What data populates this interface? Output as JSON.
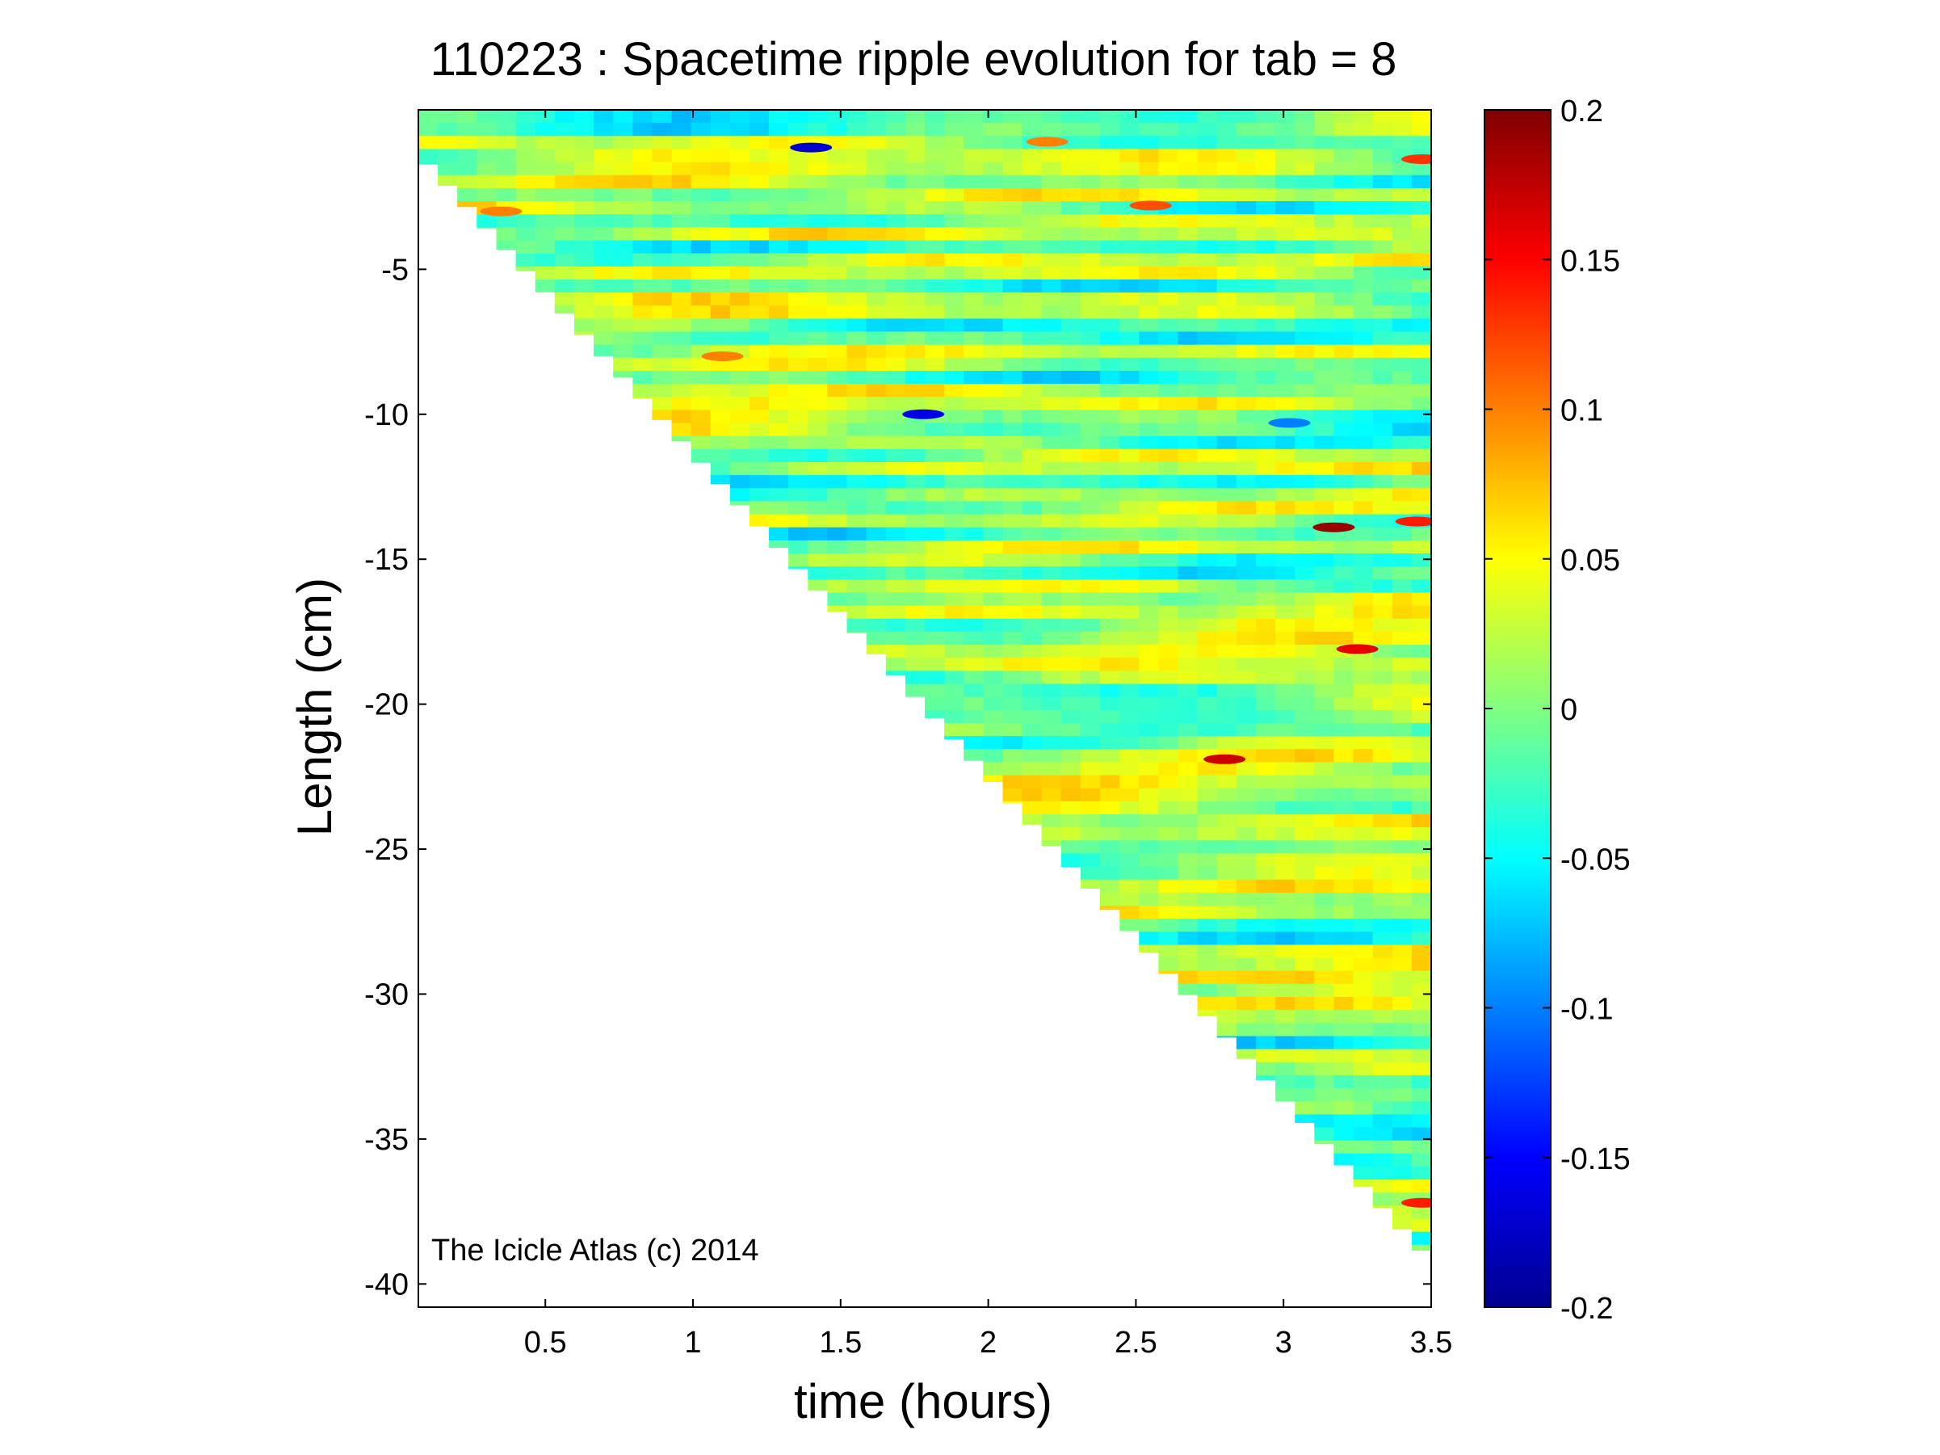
{
  "chart_data": {
    "type": "heatmap",
    "title": "110223 : Spacetime ripple evolution for tab = 8",
    "xlabel": "time (hours)",
    "ylabel": "Length (cm)",
    "xlim": [
      0.07,
      3.5
    ],
    "ylim": [
      -40.8,
      0.5
    ],
    "x_ticks": [
      0.5,
      1,
      1.5,
      2,
      2.5,
      3,
      3.5
    ],
    "x_tick_labels": [
      "0.5",
      "1",
      "1.5",
      "2",
      "2.5",
      "3",
      "3.5"
    ],
    "y_ticks": [
      -5,
      -10,
      -15,
      -20,
      -25,
      -30,
      -35,
      -40
    ],
    "y_tick_labels": [
      "-5",
      "-10",
      "-15",
      "-20",
      "-25",
      "-30",
      "-35",
      "-40"
    ],
    "colorbar": {
      "colormap": "jet",
      "clim": [
        -0.2,
        0.2
      ],
      "ticks": [
        0.2,
        0.15,
        0.1,
        0.05,
        0,
        -0.05,
        -0.1,
        -0.15,
        -0.2
      ],
      "tick_labels": [
        "0.2",
        "0.15",
        "0.1",
        "0.05",
        "0",
        "-0.05",
        "-0.1",
        "-0.15",
        "-0.2"
      ]
    },
    "data_region": {
      "description": "lower edge: length grows linearly with time",
      "boundary": [
        [
          0.07,
          -1.0
        ],
        [
          3.5,
          -39.2
        ]
      ]
    },
    "features": [
      {
        "x": 1.78,
        "y": -10.0,
        "value": -0.16
      },
      {
        "x": 1.4,
        "y": -0.8,
        "value": -0.17
      },
      {
        "x": 3.17,
        "y": -13.9,
        "value": 0.19
      },
      {
        "x": 3.45,
        "y": -13.7,
        "value": 0.14
      },
      {
        "x": 3.25,
        "y": -18.1,
        "value": 0.16
      },
      {
        "x": 2.8,
        "y": -21.9,
        "value": 0.17
      },
      {
        "x": 3.47,
        "y": -37.2,
        "value": 0.14
      },
      {
        "x": 3.47,
        "y": -1.2,
        "value": 0.13
      },
      {
        "x": 1.1,
        "y": -8.0,
        "value": 0.1
      },
      {
        "x": 3.02,
        "y": -10.3,
        "value": -0.1
      },
      {
        "x": 2.55,
        "y": -2.8,
        "value": 0.12
      },
      {
        "x": 0.35,
        "y": -3.0,
        "value": 0.1
      },
      {
        "x": 2.2,
        "y": -0.6,
        "value": 0.1
      }
    ]
  },
  "credit": "The Icicle Atlas (c) 2014",
  "colors": {
    "jet_stops": [
      "#00008f",
      "#0000ff",
      "#00ffff",
      "#ffff00",
      "#ff0000",
      "#800000"
    ]
  }
}
